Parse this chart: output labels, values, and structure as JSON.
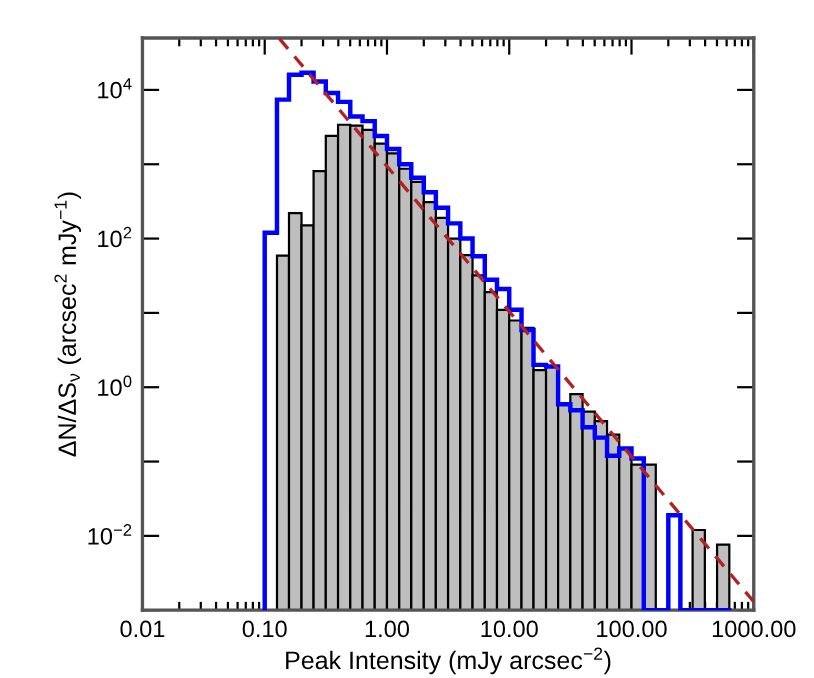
{
  "chart_data": {
    "type": "histogram",
    "xlabel": "Peak Intensity (mJy arcsec$^{−2}$)",
    "ylabel": "ΔN/ΔS$_{ν}$ (arcsec$^{2}$ mJy$^{−1}$)",
    "log": "xy",
    "bins": [
      0.1,
      0.126,
      0.158,
      0.2,
      0.251,
      0.316,
      0.398,
      0.501,
      0.631,
      0.794,
      1,
      1.26,
      1.58,
      2,
      2.51,
      3.16,
      3.98,
      5.01,
      6.31,
      7.94,
      10,
      12.6,
      15.8,
      20,
      25.1,
      31.6,
      39.8,
      50.1,
      63.1,
      79.4,
      100,
      126,
      158,
      200,
      251,
      316,
      398,
      501,
      631
    ],
    "series": [
      {
        "color": "#bebebe",
        "values": [
          null,
          59,
          220,
          150,
          810,
          2400,
          3400,
          3300,
          2900,
          1900,
          1400,
          870,
          580,
          310,
          190,
          100,
          60,
          32,
          19,
          11,
          7.9,
          6.3,
          1.7,
          1.9,
          0.6,
          0.81,
          0.47,
          0.35,
          0.23,
          0.15,
          0.091,
          0.091,
          null,
          null,
          null,
          0.012,
          null,
          0.0076
        ]
      },
      {
        "type": "step",
        "color": "#0000ff",
        "x": [
          0.1,
          0.1,
          0.126,
          0.158,
          0.2,
          0.251,
          0.316,
          0.398,
          0.501,
          0.631,
          0.794,
          1,
          1.26,
          1.58,
          2,
          2.51,
          3.16,
          3.98,
          5.01,
          6.31,
          7.94,
          10,
          12.6,
          15.8,
          20,
          25.1,
          31.6,
          39.8,
          50.1,
          63.1,
          79.4,
          100,
          126,
          158,
          200,
          251,
          316,
          398,
          501,
          631
        ],
        "values": [
          0.001,
          120,
          7400,
          16000,
          17000,
          13000,
          9100,
          6900,
          4400,
          3800,
          2400,
          1600,
          1000,
          660,
          420,
          260,
          160,
          100,
          58,
          28,
          21,
          11,
          5.9,
          2.0,
          1.9,
          0.59,
          0.49,
          0.29,
          0.21,
          0.12,
          0.15,
          0.11,
          0.001,
          0.001,
          0.019,
          0.001,
          0.001,
          0.001,
          0.001,
          0.001
        ]
      },
      {
        "type": "line",
        "color": "#b22222",
        "line_style": "dashed",
        "x": [
          0.132,
          1000
        ],
        "values": [
          49000,
          0.0013
        ]
      }
    ],
    "xlim": [
      0.01,
      1000
    ],
    "xticks": [
      {
        "value": 0.01,
        "label": "0.01"
      },
      {
        "value": 0.1,
        "label": "0.10"
      },
      {
        "value": 1,
        "label": "1.00"
      },
      {
        "value": 10,
        "label": "10.00"
      },
      {
        "value": 100,
        "label": "100.00"
      },
      {
        "value": 1000,
        "label": "1000.00"
      }
    ],
    "ylim": [
      0.001,
      50000
    ],
    "yticks": [
      {
        "value": 0.001,
        "label": null
      },
      {
        "value": 0.01,
        "label": "10$^{−2}$"
      },
      {
        "value": 0.1,
        "label": null
      },
      {
        "value": 1,
        "label": "10$^{0}$"
      },
      {
        "value": 10,
        "label": null
      },
      {
        "value": 100,
        "label": "10$^{2}$"
      },
      {
        "value": 1000,
        "label": null
      },
      {
        "value": 10000,
        "label": "10$^{4}$"
      }
    ]
  }
}
